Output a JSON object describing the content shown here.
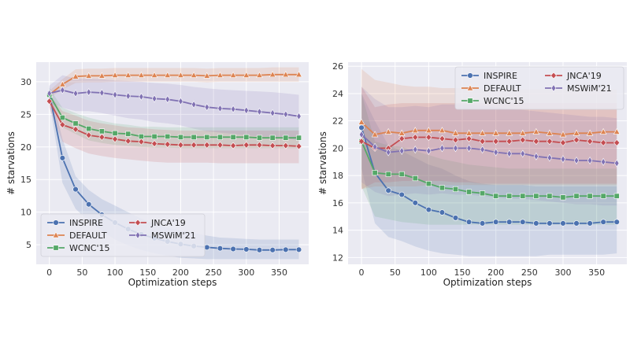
{
  "chart_data": [
    {
      "type": "line",
      "title": "",
      "xlabel": "Optimization steps",
      "ylabel": "# starvations",
      "xlim": [
        -20,
        395
      ],
      "ylim": [
        2,
        33
      ],
      "xticks": [
        0,
        50,
        100,
        150,
        200,
        250,
        300,
        350
      ],
      "yticks": [
        5,
        10,
        15,
        20,
        25,
        30
      ],
      "grid": true,
      "legend_position": "bottom-left",
      "x": [
        0,
        20,
        40,
        60,
        80,
        100,
        120,
        140,
        160,
        180,
        200,
        220,
        240,
        260,
        280,
        300,
        320,
        340,
        360,
        380
      ],
      "series": [
        {
          "name": "INSPIRE",
          "color": "#4c72b0",
          "marker": "circle",
          "values": [
            28.2,
            18.3,
            13.5,
            11.2,
            9.6,
            8.4,
            7.4,
            6.6,
            6.0,
            5.5,
            5.1,
            4.8,
            4.6,
            4.45,
            4.35,
            4.3,
            4.2,
            4.2,
            4.25,
            4.25
          ],
          "band_low": [
            27.0,
            14.5,
            10.5,
            8.6,
            7.1,
            5.8,
            4.9,
            4.2,
            3.7,
            3.3,
            3.0,
            2.9,
            2.8,
            2.8,
            2.8,
            2.8,
            2.8,
            2.8,
            2.8,
            2.8
          ],
          "band_high": [
            29.4,
            21.2,
            15.5,
            13.4,
            12.0,
            11.0,
            10.0,
            9.0,
            8.2,
            7.6,
            7.2,
            6.8,
            6.4,
            6.1,
            6.0,
            5.9,
            5.8,
            5.8,
            5.8,
            5.8
          ]
        },
        {
          "name": "DEFAULT",
          "color": "#dd8452",
          "marker": "triangle",
          "values": [
            28.0,
            29.6,
            30.8,
            30.9,
            30.9,
            31.0,
            31.0,
            31.0,
            31.0,
            31.0,
            31.0,
            31.0,
            30.9,
            31.0,
            31.0,
            31.0,
            31.0,
            31.1,
            31.1,
            31.1
          ],
          "band_low": [
            27.5,
            28.8,
            29.8,
            29.9,
            29.9,
            30.0,
            30.0,
            30.0,
            30.0,
            30.0,
            30.0,
            30.0,
            29.9,
            30.0,
            30.0,
            30.0,
            30.0,
            30.0,
            30.0,
            30.0
          ],
          "band_high": [
            28.6,
            30.4,
            31.9,
            32.0,
            32.0,
            32.1,
            32.1,
            32.1,
            32.1,
            32.1,
            32.1,
            32.1,
            32.0,
            32.1,
            32.1,
            32.1,
            32.1,
            32.2,
            32.2,
            32.2
          ]
        },
        {
          "name": "WCNC'15",
          "color": "#55a868",
          "marker": "square",
          "values": [
            28.0,
            24.5,
            23.6,
            22.8,
            22.4,
            22.1,
            22.0,
            21.6,
            21.6,
            21.6,
            21.5,
            21.5,
            21.5,
            21.5,
            21.5,
            21.5,
            21.4,
            21.4,
            21.4,
            21.4
          ],
          "band_low": [
            27.0,
            23.0,
            22.0,
            21.0,
            20.6,
            20.3,
            20.2,
            20.0,
            19.9,
            19.9,
            19.8,
            19.8,
            19.8,
            19.8,
            19.8,
            19.8,
            19.8,
            19.8,
            19.8,
            19.8
          ],
          "band_high": [
            29.0,
            26.0,
            25.2,
            24.5,
            24.0,
            23.6,
            23.4,
            23.1,
            23.1,
            23.0,
            23.0,
            23.0,
            23.0,
            23.0,
            23.0,
            23.0,
            23.0,
            23.0,
            23.0,
            23.0
          ]
        },
        {
          "name": "JNCA'19",
          "color": "#c44e52",
          "marker": "diamond",
          "values": [
            27.0,
            23.4,
            22.7,
            21.8,
            21.5,
            21.2,
            20.9,
            20.8,
            20.5,
            20.4,
            20.3,
            20.3,
            20.3,
            20.3,
            20.2,
            20.3,
            20.3,
            20.2,
            20.2,
            20.1
          ],
          "band_low": [
            26.0,
            20.8,
            19.8,
            19.0,
            18.6,
            18.3,
            18.1,
            17.9,
            17.7,
            17.6,
            17.6,
            17.6,
            17.6,
            17.5,
            17.5,
            17.5,
            17.5,
            17.5,
            17.5,
            17.5
          ],
          "band_high": [
            28.0,
            25.5,
            24.8,
            24.0,
            23.6,
            23.3,
            23.0,
            22.9,
            22.7,
            22.6,
            22.5,
            22.5,
            22.5,
            22.5,
            22.5,
            22.5,
            22.5,
            22.5,
            22.5,
            22.5
          ]
        },
        {
          "name": "MSWiM'21",
          "color": "#8172b3",
          "marker": "diamond-thin",
          "values": [
            28.2,
            28.7,
            28.2,
            28.4,
            28.3,
            28.0,
            27.8,
            27.7,
            27.4,
            27.3,
            27.0,
            26.5,
            26.1,
            25.9,
            25.8,
            25.6,
            25.4,
            25.2,
            25.0,
            24.7
          ],
          "band_low": [
            27.0,
            26.0,
            25.5,
            25.5,
            25.2,
            24.8,
            24.4,
            24.2,
            23.8,
            23.6,
            23.3,
            22.8,
            22.4,
            22.2,
            22.0,
            21.8,
            21.6,
            21.5,
            21.3,
            21.0
          ],
          "band_high": [
            29.4,
            31.0,
            30.5,
            30.5,
            30.4,
            30.2,
            30.1,
            30.0,
            29.8,
            29.7,
            29.5,
            29.2,
            29.0,
            28.8,
            28.7,
            28.6,
            28.5,
            28.4,
            28.2,
            28.0
          ]
        }
      ]
    },
    {
      "type": "line",
      "title": "",
      "xlabel": "Optimization steps",
      "ylabel": "# starvations",
      "xlim": [
        -20,
        395
      ],
      "ylim": [
        11.5,
        26.3
      ],
      "xticks": [
        0,
        50,
        100,
        150,
        200,
        250,
        300,
        350
      ],
      "yticks": [
        12,
        14,
        16,
        18,
        20,
        22,
        24,
        26
      ],
      "grid": true,
      "legend_position": "top-right",
      "x": [
        0,
        20,
        40,
        60,
        80,
        100,
        120,
        140,
        160,
        180,
        200,
        220,
        240,
        260,
        280,
        300,
        320,
        340,
        360,
        380
      ],
      "series": [
        {
          "name": "INSPIRE",
          "color": "#4c72b0",
          "marker": "circle",
          "values": [
            21.5,
            18.2,
            16.9,
            16.6,
            16.0,
            15.5,
            15.3,
            14.9,
            14.6,
            14.5,
            14.6,
            14.6,
            14.6,
            14.5,
            14.5,
            14.5,
            14.5,
            14.5,
            14.6,
            14.6
          ],
          "band_low": [
            18.5,
            14.5,
            13.5,
            13.2,
            12.8,
            12.5,
            12.3,
            12.2,
            12.1,
            12.1,
            12.1,
            12.1,
            12.1,
            12.1,
            12.2,
            12.2,
            12.2,
            12.2,
            12.2,
            12.3
          ],
          "band_high": [
            24.0,
            22.0,
            20.2,
            19.8,
            19.3,
            18.8,
            18.5,
            18.0,
            17.6,
            17.4,
            17.3,
            17.3,
            17.3,
            17.2,
            17.2,
            17.2,
            17.2,
            17.2,
            17.2,
            17.2
          ]
        },
        {
          "name": "DEFAULT",
          "color": "#dd8452",
          "marker": "triangle",
          "values": [
            21.9,
            21.0,
            21.2,
            21.1,
            21.3,
            21.3,
            21.3,
            21.1,
            21.1,
            21.1,
            21.1,
            21.1,
            21.1,
            21.2,
            21.1,
            21.0,
            21.1,
            21.1,
            21.2,
            21.2
          ],
          "band_low": [
            17.0,
            17.2,
            17.2,
            17.2,
            17.2,
            17.3,
            17.3,
            17.3,
            17.3,
            17.3,
            17.3,
            17.3,
            17.3,
            17.3,
            17.3,
            17.3,
            17.3,
            17.3,
            17.3,
            17.3
          ],
          "band_high": [
            25.8,
            25.0,
            24.8,
            24.6,
            24.5,
            24.5,
            24.4,
            24.4,
            24.4,
            24.3,
            24.3,
            24.3,
            24.3,
            24.3,
            24.3,
            24.3,
            24.3,
            24.3,
            24.3,
            24.3
          ]
        },
        {
          "name": "WCNC'15",
          "color": "#55a868",
          "marker": "square",
          "values": [
            20.5,
            18.2,
            18.1,
            18.1,
            17.8,
            17.4,
            17.1,
            17.0,
            16.8,
            16.7,
            16.5,
            16.5,
            16.5,
            16.5,
            16.5,
            16.4,
            16.5,
            16.5,
            16.5,
            16.5
          ],
          "band_low": [
            17.2,
            15.0,
            14.8,
            14.6,
            14.5,
            14.4,
            14.4,
            14.4,
            14.4,
            14.4,
            14.4,
            14.4,
            14.4,
            14.4,
            14.4,
            14.4,
            14.4,
            14.4,
            14.4,
            14.4
          ],
          "band_high": [
            24.0,
            20.5,
            20.2,
            20.1,
            19.8,
            19.5,
            19.2,
            19.0,
            18.8,
            18.7,
            18.6,
            18.5,
            18.5,
            18.5,
            18.5,
            18.5,
            18.5,
            18.5,
            18.5,
            18.5
          ]
        },
        {
          "name": "JNCA'19",
          "color": "#c44e52",
          "marker": "diamond",
          "values": [
            20.5,
            20.0,
            20.0,
            20.7,
            20.8,
            20.8,
            20.7,
            20.6,
            20.7,
            20.5,
            20.5,
            20.5,
            20.6,
            20.5,
            20.5,
            20.4,
            20.6,
            20.5,
            20.4,
            20.4
          ],
          "band_low": [
            17.0,
            17.5,
            17.5,
            17.6,
            17.6,
            17.6,
            17.6,
            17.5,
            17.5,
            17.4,
            17.4,
            17.4,
            17.4,
            17.4,
            17.4,
            17.4,
            17.4,
            17.4,
            17.4,
            17.4
          ],
          "band_high": [
            24.5,
            23.0,
            23.2,
            23.3,
            23.3,
            23.3,
            23.3,
            23.3,
            23.3,
            23.3,
            23.3,
            23.3,
            23.3,
            23.3,
            23.3,
            23.3,
            23.3,
            23.3,
            23.3,
            23.3
          ]
        },
        {
          "name": "MSWiM'21",
          "color": "#8172b3",
          "marker": "diamond-thin",
          "values": [
            21.0,
            20.1,
            19.7,
            19.8,
            19.9,
            19.8,
            20.0,
            20.0,
            20.0,
            19.9,
            19.7,
            19.6,
            19.6,
            19.4,
            19.3,
            19.2,
            19.1,
            19.1,
            19.0,
            18.9
          ],
          "band_low": [
            17.5,
            16.8,
            16.5,
            16.6,
            16.7,
            16.6,
            16.7,
            16.6,
            16.6,
            16.5,
            16.4,
            16.3,
            16.3,
            16.2,
            16.1,
            16.0,
            15.9,
            15.9,
            15.8,
            15.8
          ],
          "band_high": [
            24.5,
            23.6,
            23.0,
            23.0,
            23.1,
            23.0,
            23.2,
            23.2,
            23.2,
            23.1,
            23.0,
            22.9,
            22.8,
            22.7,
            22.6,
            22.5,
            22.4,
            22.3,
            22.3,
            22.2
          ]
        }
      ]
    }
  ]
}
